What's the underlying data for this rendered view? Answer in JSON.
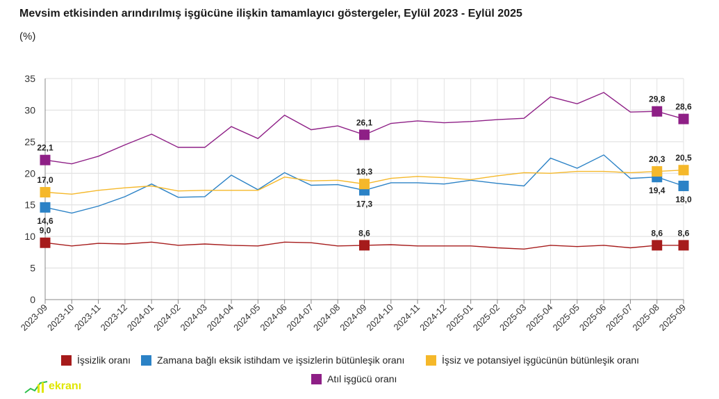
{
  "chart_data": {
    "type": "line",
    "title": "Mevsim etkisinden arındırılmış işgücüne ilişkin tamamlayıcı göstergeler, Eylül 2023 - Eylül 2025",
    "subtitle": "(%)",
    "categories": [
      "2023-09",
      "2023-10",
      "2023-11",
      "2023-12",
      "2024-01",
      "2024-02",
      "2024-03",
      "2024-04",
      "2024-05",
      "2024-06",
      "2024-07",
      "2024-08",
      "2024-09",
      "2024-10",
      "2024-11",
      "2024-12",
      "2025-01",
      "2025-02",
      "2025-03",
      "2025-04",
      "2025-05",
      "2025-06",
      "2025-07",
      "2025-08",
      "2025-09"
    ],
    "y_ticks": [
      "0",
      "5",
      "10",
      "15",
      "20",
      "25",
      "30",
      "35"
    ],
    "ylim": [
      0,
      35
    ],
    "grid": true,
    "legend_position": "bottom",
    "series": [
      {
        "name": "İşsizlik oranı",
        "color": "#a61b1b",
        "values": [
          9.0,
          8.5,
          8.9,
          8.8,
          9.1,
          8.6,
          8.8,
          8.6,
          8.5,
          9.1,
          9.0,
          8.5,
          8.6,
          8.7,
          8.5,
          8.5,
          8.5,
          8.2,
          8.0,
          8.6,
          8.4,
          8.6,
          8.2,
          8.6,
          8.6
        ],
        "markers": [
          {
            "index": 0,
            "label": "9,0"
          },
          {
            "index": 12,
            "label": "8,6"
          },
          {
            "index": 23,
            "label": "8,6"
          },
          {
            "index": 24,
            "label": "8,6"
          }
        ]
      },
      {
        "name": "Zamana bağlı eksik istihdam ve işsizlerin bütünleşik oranı",
        "color": "#2b82c6",
        "values": [
          14.6,
          13.7,
          14.8,
          16.3,
          18.3,
          16.2,
          16.3,
          19.7,
          17.4,
          20.1,
          18.1,
          18.2,
          17.3,
          18.5,
          18.5,
          18.3,
          18.9,
          18.4,
          18.0,
          22.4,
          20.8,
          22.9,
          19.2,
          19.4,
          18.0
        ],
        "markers": [
          {
            "index": 0,
            "label": "14,6"
          },
          {
            "index": 12,
            "label": "17,3"
          },
          {
            "index": 23,
            "label": "19,4"
          },
          {
            "index": 24,
            "label": "18,0"
          }
        ]
      },
      {
        "name": "İşsiz ve potansiyel işgücünün bütünleşik oranı",
        "color": "#f5b82a",
        "values": [
          17.0,
          16.7,
          17.3,
          17.7,
          18.0,
          17.2,
          17.3,
          17.3,
          17.3,
          19.4,
          18.8,
          18.9,
          18.3,
          19.2,
          19.5,
          19.3,
          19.0,
          19.6,
          20.1,
          20.0,
          20.3,
          20.3,
          20.1,
          20.3,
          20.5
        ],
        "markers": [
          {
            "index": 0,
            "label": "17,0"
          },
          {
            "index": 12,
            "label": "18,3"
          },
          {
            "index": 23,
            "label": "20,3"
          },
          {
            "index": 24,
            "label": "20,5"
          }
        ]
      },
      {
        "name": "Atıl işgücü oranı",
        "color": "#8e1f86",
        "values": [
          22.1,
          21.5,
          22.7,
          24.5,
          26.2,
          24.1,
          24.1,
          27.4,
          25.5,
          29.2,
          26.9,
          27.5,
          26.1,
          27.9,
          28.3,
          28.0,
          28.2,
          28.5,
          28.7,
          32.1,
          31.0,
          32.8,
          29.7,
          29.8,
          28.6
        ],
        "markers": [
          {
            "index": 0,
            "label": "22,1"
          },
          {
            "index": 12,
            "label": "26,1"
          },
          {
            "index": 23,
            "label": "29,8"
          },
          {
            "index": 24,
            "label": "28,6"
          }
        ]
      }
    ]
  },
  "brand": {
    "logo_text": "ekranı"
  }
}
